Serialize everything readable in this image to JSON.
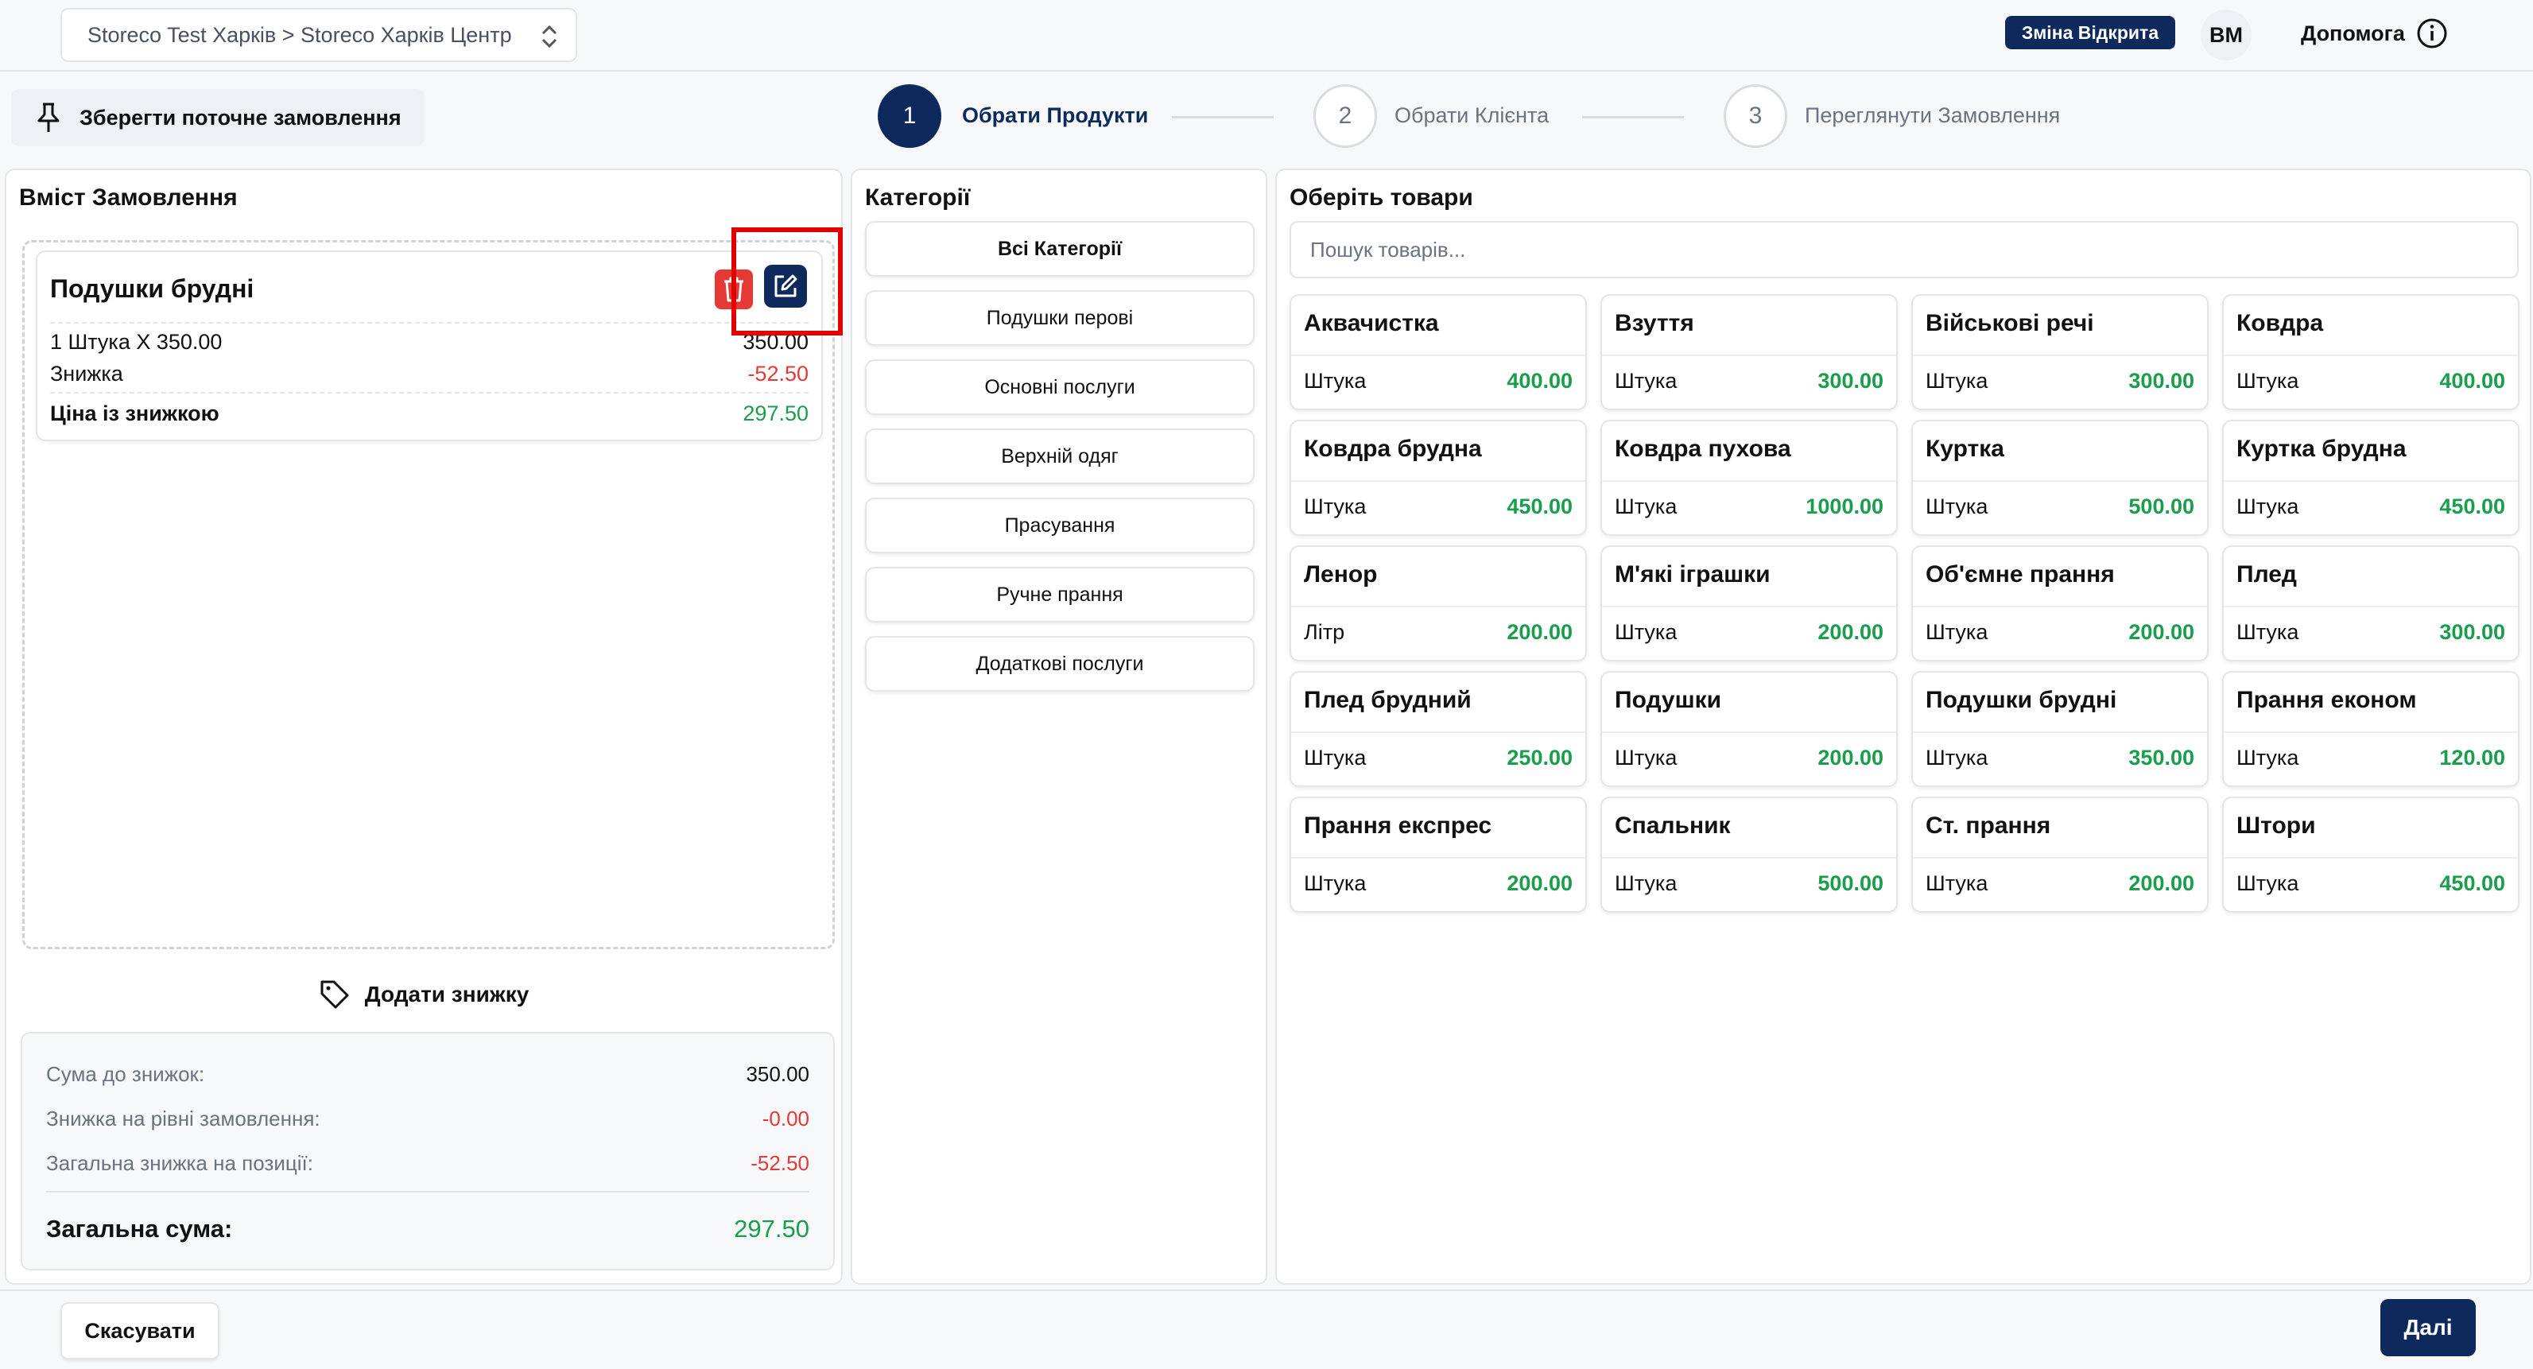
{
  "header": {
    "store_path": "Storeco Test Харків > Storeco Харків Центр",
    "shift_badge": "Зміна Відкрита",
    "user_initials": "BM",
    "help_label": "Допомога"
  },
  "toolbar": {
    "save_order_label": "Зберегти поточне замовлення"
  },
  "steps": [
    {
      "number": "1",
      "label": "Обрати Продукти",
      "active": true
    },
    {
      "number": "2",
      "label": "Обрати Клієнта",
      "active": false
    },
    {
      "number": "3",
      "label": "Переглянути Замовлення",
      "active": false
    }
  ],
  "order": {
    "title": "Вміст Замовлення",
    "items": [
      {
        "name": "Подушки брудні",
        "qty_line": "1 Штука X 350.00",
        "line_total": "350.00",
        "discount_label": "Знижка",
        "discount_value": "-52.50",
        "final_label": "Ціна із знижкою",
        "final_value": "297.50"
      }
    ],
    "add_discount_label": "Додати знижку",
    "summary": {
      "subtotal_label": "Сума до знижок:",
      "subtotal_value": "350.00",
      "order_discount_label": "Знижка на рівні замовлення:",
      "order_discount_value": "-0.00",
      "item_discount_label": "Загальна знижка на позиції:",
      "item_discount_value": "-52.50",
      "total_label": "Загальна сума:",
      "total_value": "297.50"
    }
  },
  "categories": {
    "title": "Категорії",
    "items": [
      {
        "label": "Всі Категорії",
        "selected": true
      },
      {
        "label": "Подушки перові",
        "selected": false
      },
      {
        "label": "Основні послуги",
        "selected": false
      },
      {
        "label": "Верхній одяг",
        "selected": false
      },
      {
        "label": "Прасування",
        "selected": false
      },
      {
        "label": "Ручне прання",
        "selected": false
      },
      {
        "label": "Додаткові послуги",
        "selected": false
      }
    ]
  },
  "products": {
    "title": "Оберіть товари",
    "search_placeholder": "Пошук товарів...",
    "items": [
      {
        "name": "Аквачистка",
        "unit": "Штука",
        "price": "400.00"
      },
      {
        "name": "Взуття",
        "unit": "Штука",
        "price": "300.00"
      },
      {
        "name": "Військові речі",
        "unit": "Штука",
        "price": "300.00"
      },
      {
        "name": "Ковдра",
        "unit": "Штука",
        "price": "400.00"
      },
      {
        "name": "Ковдра брудна",
        "unit": "Штука",
        "price": "450.00"
      },
      {
        "name": "Ковдра пухова",
        "unit": "Штука",
        "price": "1000.00"
      },
      {
        "name": "Куртка",
        "unit": "Штука",
        "price": "500.00"
      },
      {
        "name": "Куртка брудна",
        "unit": "Штука",
        "price": "450.00"
      },
      {
        "name": "Ленор",
        "unit": "Літр",
        "price": "200.00"
      },
      {
        "name": "М'які іграшки",
        "unit": "Штука",
        "price": "200.00"
      },
      {
        "name": "Об'ємне прання",
        "unit": "Штука",
        "price": "200.00"
      },
      {
        "name": "Плед",
        "unit": "Штука",
        "price": "300.00"
      },
      {
        "name": "Плед брудний",
        "unit": "Штука",
        "price": "250.00"
      },
      {
        "name": "Подушки",
        "unit": "Штука",
        "price": "200.00"
      },
      {
        "name": "Подушки брудні",
        "unit": "Штука",
        "price": "350.00"
      },
      {
        "name": "Прання економ",
        "unit": "Штука",
        "price": "120.00"
      },
      {
        "name": "Прання експрес",
        "unit": "Штука",
        "price": "200.00"
      },
      {
        "name": "Спальник",
        "unit": "Штука",
        "price": "500.00"
      },
      {
        "name": "Ст. прання",
        "unit": "Штука",
        "price": "200.00"
      },
      {
        "name": "Штори",
        "unit": "Штука",
        "price": "450.00"
      }
    ]
  },
  "footer": {
    "cancel_label": "Скасувати",
    "next_label": "Далі"
  },
  "colors": {
    "primary": "#0e2a5c",
    "danger": "#e53935",
    "success": "#1a9e4b",
    "highlight": "#e00000"
  }
}
